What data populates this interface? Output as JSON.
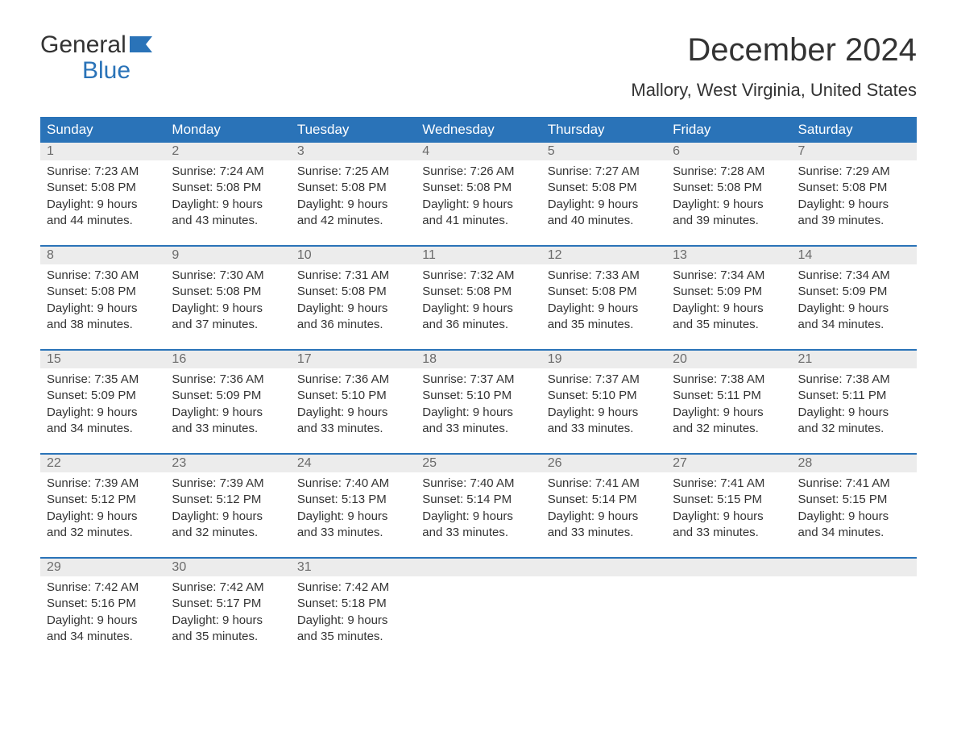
{
  "logo": {
    "line1": "General",
    "line2": "Blue",
    "flag_color": "#2a73b8"
  },
  "title": "December 2024",
  "location": "Mallory, West Virginia, United States",
  "colors": {
    "header_bg": "#2a73b8",
    "header_text": "#ffffff",
    "daynum_bg": "#ececec",
    "daynum_text": "#6b6b6b",
    "body_text": "#333333",
    "row_divider": "#2a73b8",
    "page_bg": "#ffffff"
  },
  "weekdays": [
    "Sunday",
    "Monday",
    "Tuesday",
    "Wednesday",
    "Thursday",
    "Friday",
    "Saturday"
  ],
  "weeks": [
    [
      {
        "day": "1",
        "sunrise": "Sunrise: 7:23 AM",
        "sunset": "Sunset: 5:08 PM",
        "dl1": "Daylight: 9 hours",
        "dl2": "and 44 minutes."
      },
      {
        "day": "2",
        "sunrise": "Sunrise: 7:24 AM",
        "sunset": "Sunset: 5:08 PM",
        "dl1": "Daylight: 9 hours",
        "dl2": "and 43 minutes."
      },
      {
        "day": "3",
        "sunrise": "Sunrise: 7:25 AM",
        "sunset": "Sunset: 5:08 PM",
        "dl1": "Daylight: 9 hours",
        "dl2": "and 42 minutes."
      },
      {
        "day": "4",
        "sunrise": "Sunrise: 7:26 AM",
        "sunset": "Sunset: 5:08 PM",
        "dl1": "Daylight: 9 hours",
        "dl2": "and 41 minutes."
      },
      {
        "day": "5",
        "sunrise": "Sunrise: 7:27 AM",
        "sunset": "Sunset: 5:08 PM",
        "dl1": "Daylight: 9 hours",
        "dl2": "and 40 minutes."
      },
      {
        "day": "6",
        "sunrise": "Sunrise: 7:28 AM",
        "sunset": "Sunset: 5:08 PM",
        "dl1": "Daylight: 9 hours",
        "dl2": "and 39 minutes."
      },
      {
        "day": "7",
        "sunrise": "Sunrise: 7:29 AM",
        "sunset": "Sunset: 5:08 PM",
        "dl1": "Daylight: 9 hours",
        "dl2": "and 39 minutes."
      }
    ],
    [
      {
        "day": "8",
        "sunrise": "Sunrise: 7:30 AM",
        "sunset": "Sunset: 5:08 PM",
        "dl1": "Daylight: 9 hours",
        "dl2": "and 38 minutes."
      },
      {
        "day": "9",
        "sunrise": "Sunrise: 7:30 AM",
        "sunset": "Sunset: 5:08 PM",
        "dl1": "Daylight: 9 hours",
        "dl2": "and 37 minutes."
      },
      {
        "day": "10",
        "sunrise": "Sunrise: 7:31 AM",
        "sunset": "Sunset: 5:08 PM",
        "dl1": "Daylight: 9 hours",
        "dl2": "and 36 minutes."
      },
      {
        "day": "11",
        "sunrise": "Sunrise: 7:32 AM",
        "sunset": "Sunset: 5:08 PM",
        "dl1": "Daylight: 9 hours",
        "dl2": "and 36 minutes."
      },
      {
        "day": "12",
        "sunrise": "Sunrise: 7:33 AM",
        "sunset": "Sunset: 5:08 PM",
        "dl1": "Daylight: 9 hours",
        "dl2": "and 35 minutes."
      },
      {
        "day": "13",
        "sunrise": "Sunrise: 7:34 AM",
        "sunset": "Sunset: 5:09 PM",
        "dl1": "Daylight: 9 hours",
        "dl2": "and 35 minutes."
      },
      {
        "day": "14",
        "sunrise": "Sunrise: 7:34 AM",
        "sunset": "Sunset: 5:09 PM",
        "dl1": "Daylight: 9 hours",
        "dl2": "and 34 minutes."
      }
    ],
    [
      {
        "day": "15",
        "sunrise": "Sunrise: 7:35 AM",
        "sunset": "Sunset: 5:09 PM",
        "dl1": "Daylight: 9 hours",
        "dl2": "and 34 minutes."
      },
      {
        "day": "16",
        "sunrise": "Sunrise: 7:36 AM",
        "sunset": "Sunset: 5:09 PM",
        "dl1": "Daylight: 9 hours",
        "dl2": "and 33 minutes."
      },
      {
        "day": "17",
        "sunrise": "Sunrise: 7:36 AM",
        "sunset": "Sunset: 5:10 PM",
        "dl1": "Daylight: 9 hours",
        "dl2": "and 33 minutes."
      },
      {
        "day": "18",
        "sunrise": "Sunrise: 7:37 AM",
        "sunset": "Sunset: 5:10 PM",
        "dl1": "Daylight: 9 hours",
        "dl2": "and 33 minutes."
      },
      {
        "day": "19",
        "sunrise": "Sunrise: 7:37 AM",
        "sunset": "Sunset: 5:10 PM",
        "dl1": "Daylight: 9 hours",
        "dl2": "and 33 minutes."
      },
      {
        "day": "20",
        "sunrise": "Sunrise: 7:38 AM",
        "sunset": "Sunset: 5:11 PM",
        "dl1": "Daylight: 9 hours",
        "dl2": "and 32 minutes."
      },
      {
        "day": "21",
        "sunrise": "Sunrise: 7:38 AM",
        "sunset": "Sunset: 5:11 PM",
        "dl1": "Daylight: 9 hours",
        "dl2": "and 32 minutes."
      }
    ],
    [
      {
        "day": "22",
        "sunrise": "Sunrise: 7:39 AM",
        "sunset": "Sunset: 5:12 PM",
        "dl1": "Daylight: 9 hours",
        "dl2": "and 32 minutes."
      },
      {
        "day": "23",
        "sunrise": "Sunrise: 7:39 AM",
        "sunset": "Sunset: 5:12 PM",
        "dl1": "Daylight: 9 hours",
        "dl2": "and 32 minutes."
      },
      {
        "day": "24",
        "sunrise": "Sunrise: 7:40 AM",
        "sunset": "Sunset: 5:13 PM",
        "dl1": "Daylight: 9 hours",
        "dl2": "and 33 minutes."
      },
      {
        "day": "25",
        "sunrise": "Sunrise: 7:40 AM",
        "sunset": "Sunset: 5:14 PM",
        "dl1": "Daylight: 9 hours",
        "dl2": "and 33 minutes."
      },
      {
        "day": "26",
        "sunrise": "Sunrise: 7:41 AM",
        "sunset": "Sunset: 5:14 PM",
        "dl1": "Daylight: 9 hours",
        "dl2": "and 33 minutes."
      },
      {
        "day": "27",
        "sunrise": "Sunrise: 7:41 AM",
        "sunset": "Sunset: 5:15 PM",
        "dl1": "Daylight: 9 hours",
        "dl2": "and 33 minutes."
      },
      {
        "day": "28",
        "sunrise": "Sunrise: 7:41 AM",
        "sunset": "Sunset: 5:15 PM",
        "dl1": "Daylight: 9 hours",
        "dl2": "and 34 minutes."
      }
    ],
    [
      {
        "day": "29",
        "sunrise": "Sunrise: 7:42 AM",
        "sunset": "Sunset: 5:16 PM",
        "dl1": "Daylight: 9 hours",
        "dl2": "and 34 minutes."
      },
      {
        "day": "30",
        "sunrise": "Sunrise: 7:42 AM",
        "sunset": "Sunset: 5:17 PM",
        "dl1": "Daylight: 9 hours",
        "dl2": "and 35 minutes."
      },
      {
        "day": "31",
        "sunrise": "Sunrise: 7:42 AM",
        "sunset": "Sunset: 5:18 PM",
        "dl1": "Daylight: 9 hours",
        "dl2": "and 35 minutes."
      },
      {
        "day": "",
        "sunrise": "",
        "sunset": "",
        "dl1": "",
        "dl2": "",
        "empty": true
      },
      {
        "day": "",
        "sunrise": "",
        "sunset": "",
        "dl1": "",
        "dl2": "",
        "empty": true
      },
      {
        "day": "",
        "sunrise": "",
        "sunset": "",
        "dl1": "",
        "dl2": "",
        "empty": true
      },
      {
        "day": "",
        "sunrise": "",
        "sunset": "",
        "dl1": "",
        "dl2": "",
        "empty": true
      }
    ]
  ]
}
